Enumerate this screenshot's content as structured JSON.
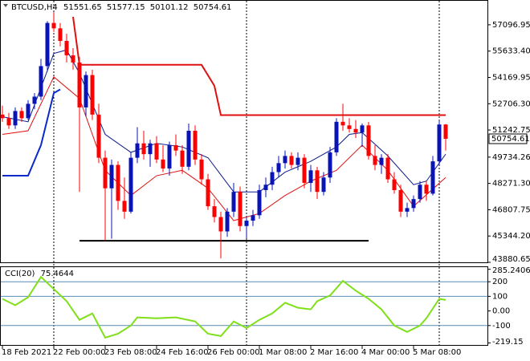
{
  "chart_data": [
    {
      "type": "candlestick",
      "title": "BTCUSD,H4",
      "categories": [
        "18 Feb 2021",
        null,
        null,
        null,
        null,
        null,
        null,
        null,
        "22 Feb 00:00",
        null,
        null,
        null,
        null,
        null,
        null,
        null,
        "23 Feb 08:00",
        null,
        null,
        null,
        null,
        null,
        null,
        null,
        "24 Feb 16:00",
        null,
        null,
        null,
        null,
        null,
        null,
        null,
        "26 Feb 00:00",
        null,
        null,
        null,
        null,
        null,
        null,
        null,
        "1 Mar 08:00",
        null,
        null,
        null,
        null,
        null,
        null,
        null,
        "2 Mar 16:00",
        null,
        null,
        null,
        null,
        null,
        null,
        null,
        "4 Mar 00:00",
        null,
        null,
        null,
        null,
        null,
        null,
        null,
        "5 Mar 08:00",
        null,
        null,
        null,
        null,
        null
      ],
      "open": [
        52100,
        51900,
        51500,
        52300,
        51900,
        52700,
        53100,
        54800,
        57200,
        56900,
        56200,
        55400,
        55000,
        52500,
        54300,
        52100,
        49700,
        48000,
        49300,
        47300,
        46700,
        49700,
        50500,
        49900,
        50500,
        49600,
        49100,
        50400,
        50100,
        49200,
        51200,
        49600,
        48500,
        47000,
        46400,
        45600,
        46700,
        47800,
        45900,
        46200,
        46500,
        47900,
        48200,
        48900,
        49400,
        49800,
        49300,
        49700,
        48300,
        49000,
        47800,
        48600,
        50000,
        51700,
        51500,
        51300,
        51100,
        51500,
        49800,
        49300,
        49700,
        48500,
        47900,
        46700,
        46900,
        47400,
        48200,
        47700,
        49500,
        51551.65
      ],
      "high": [
        52600,
        52200,
        52500,
        52500,
        52900,
        53300,
        55200,
        57300,
        57800,
        57200,
        56600,
        55800,
        55300,
        54500,
        54600,
        52700,
        50100,
        49600,
        49500,
        48600,
        50000,
        51400,
        51200,
        50700,
        50900,
        50400,
        50600,
        51000,
        50400,
        51600,
        51500,
        49900,
        48800,
        47400,
        46700,
        46900,
        48300,
        48100,
        46400,
        46800,
        48200,
        48600,
        49200,
        49800,
        50100,
        50000,
        50000,
        49900,
        49300,
        49200,
        48900,
        50300,
        51900,
        52700,
        51900,
        51800,
        51600,
        51700,
        50400,
        49900,
        49900,
        48900,
        48200,
        47200,
        47600,
        48400,
        48400,
        49800,
        51800,
        51577.15
      ],
      "low": [
        51700,
        51300,
        51300,
        51700,
        51800,
        52400,
        52900,
        54500,
        56700,
        55900,
        55000,
        54600,
        47800,
        52000,
        51800,
        49400,
        45100,
        45200,
        46800,
        46300,
        46600,
        49400,
        49600,
        49200,
        49400,
        48900,
        48700,
        49800,
        48800,
        49000,
        49300,
        48200,
        46800,
        46100,
        44100,
        45300,
        46400,
        45600,
        45200,
        45900,
        46300,
        47500,
        47900,
        48600,
        49100,
        49100,
        49000,
        48000,
        47800,
        47400,
        47600,
        48300,
        49800,
        51200,
        51100,
        50800,
        50300,
        49600,
        49000,
        48800,
        48300,
        47700,
        46400,
        46400,
        46700,
        47200,
        47300,
        47600,
        49300,
        50101.12
      ],
      "close": [
        51900,
        51500,
        52300,
        51900,
        52700,
        53100,
        54800,
        57200,
        56900,
        56200,
        55400,
        55000,
        52500,
        54300,
        52100,
        49700,
        48000,
        49300,
        47300,
        46700,
        49700,
        50500,
        49900,
        50500,
        49600,
        49100,
        50400,
        50100,
        49200,
        51200,
        49600,
        48500,
        47000,
        46400,
        45600,
        46700,
        47800,
        45900,
        46200,
        46500,
        47900,
        48200,
        48900,
        49400,
        49800,
        49300,
        49700,
        48300,
        49000,
        47800,
        48600,
        50000,
        51700,
        51500,
        51300,
        51100,
        51500,
        49800,
        49300,
        49700,
        48500,
        47900,
        46700,
        46900,
        47400,
        48200,
        47700,
        49500,
        51550,
        50754.61
      ],
      "up_color": "#0a14b4",
      "down_color": "#ff0000",
      "ylim": [
        43880.65,
        58432
      ],
      "yticks": [
        57096.95,
        {
          "value": 55633.4,
          "label": "55633.40"
        },
        54169.95,
        {
          "value": 52706.3,
          "label": "52706.30"
        },
        51242.75,
        49734.26,
        {
          "value": 48271.3,
          "label": "48271.30"
        },
        46807.75,
        {
          "value": 45344.2,
          "label": "45344.20"
        },
        43880.65
      ],
      "lines": [
        {
          "color": "#0a1a8c",
          "width": 1,
          "x": [
            0,
            4,
            8,
            10,
            12,
            16,
            20,
            24,
            28,
            32,
            36,
            40,
            44,
            48,
            52,
            54,
            56,
            60,
            64,
            66,
            69
          ],
          "values": [
            51980,
            51700,
            55500,
            55700,
            54400,
            51000,
            50000,
            50500,
            50300,
            49700,
            47800,
            47800,
            48900,
            49500,
            50300,
            51000,
            51100,
            49800,
            48200,
            48400,
            49900
          ]
        },
        {
          "color": "#e01010",
          "width": 1,
          "x": [
            0,
            4,
            8,
            12,
            16,
            20,
            24,
            28,
            32,
            36,
            40,
            44,
            48,
            52,
            56,
            60,
            64,
            69
          ],
          "values": [
            51000,
            51200,
            54200,
            53000,
            49000,
            47600,
            48700,
            49000,
            48000,
            46200,
            46600,
            47600,
            48400,
            49000,
            50400,
            49000,
            47000,
            48600
          ]
        },
        {
          "color": "#0a2acc",
          "width": 2,
          "x": [
            0,
            4,
            6,
            8,
            9
          ],
          "values": [
            48700,
            48700,
            50400,
            53300,
            53500
          ]
        },
        {
          "color": "#e01010",
          "width": 2,
          "x": [
            11,
            12,
            31,
            33,
            34,
            69
          ],
          "values": [
            57540,
            54870,
            54870,
            53700,
            52070,
            52070
          ]
        },
        {
          "color": "#000000",
          "width": 2,
          "x": [
            12,
            57
          ],
          "values": [
            45080,
            45080
          ]
        }
      ]
    },
    {
      "type": "line",
      "title": "CCI(20)",
      "color": "#7fe01a",
      "x": [
        0,
        2,
        4,
        6,
        8,
        10,
        12,
        14,
        16,
        18,
        20,
        21,
        24,
        27,
        30,
        32,
        34,
        36,
        38,
        40,
        42,
        44,
        46,
        48,
        49,
        51,
        53,
        55,
        57,
        59,
        61,
        63,
        65,
        66,
        68,
        69
      ],
      "values": [
        83,
        39,
        94,
        233,
        150,
        67,
        -61,
        -17,
        -183,
        -156,
        -100,
        -44,
        -50,
        -44,
        -72,
        -156,
        -172,
        -72,
        -117,
        -61,
        -17,
        56,
        22,
        11,
        67,
        106,
        206,
        139,
        83,
        11,
        -100,
        -144,
        -100,
        -50,
        83,
        75.4644
      ],
      "ylim": [
        -233,
        300
      ],
      "yticks": [
        285.2406,
        200,
        100,
        {
          "value": 0,
          "label": "0.00"
        },
        -100,
        -219.15
      ],
      "levels": [
        200,
        100,
        -100
      ],
      "level_color": "#5a8cb4"
    }
  ]
}
